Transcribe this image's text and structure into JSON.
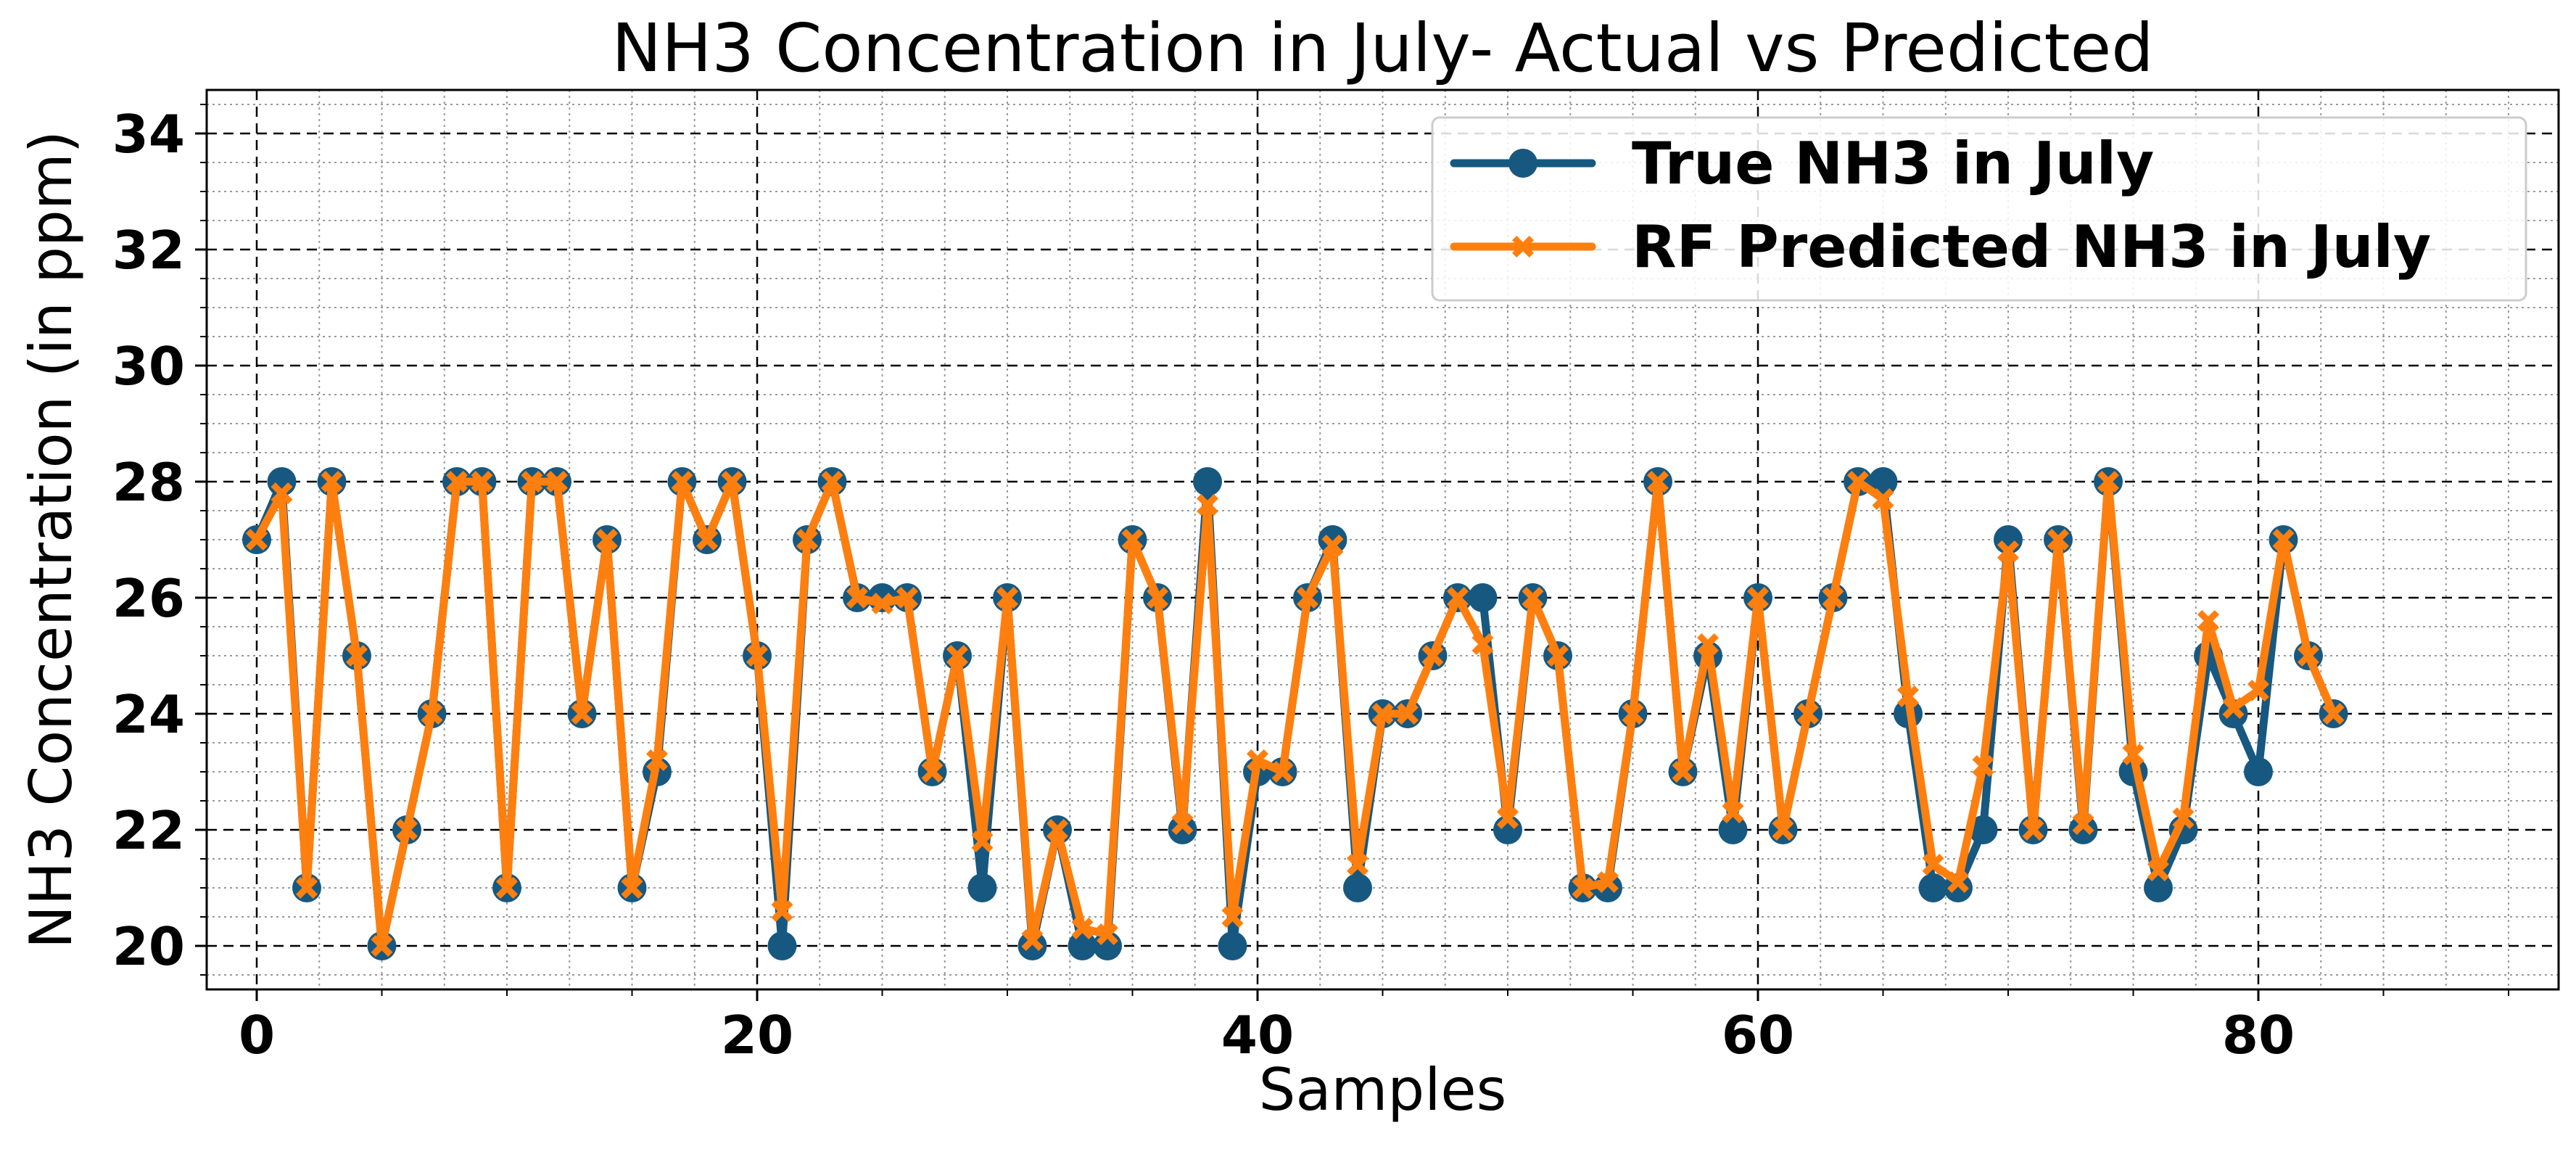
{
  "chart_data": {
    "type": "line",
    "title": "NH3 Concentration in July- Actual vs Predicted",
    "xlabel": "Samples",
    "ylabel": "NH3 Concentration (in ppm)",
    "xlim": [
      -2,
      92
    ],
    "ylim": [
      19.25,
      34.75
    ],
    "xticks": [
      0,
      20,
      40,
      60,
      80
    ],
    "yticks": [
      20,
      22,
      24,
      26,
      28,
      30,
      32,
      34
    ],
    "xtick_labels": [
      "0",
      "20",
      "40",
      "60",
      "80"
    ],
    "ytick_labels": [
      "20",
      "22",
      "24",
      "26",
      "28",
      "30",
      "32",
      "34"
    ],
    "grid": true,
    "legend_position": "top-right",
    "series": [
      {
        "name": "True NH3 in July",
        "color": "#175880",
        "marker": "circle",
        "values": [
          27,
          28,
          21,
          28,
          25,
          20,
          22,
          24,
          28,
          28,
          21,
          28,
          28,
          24,
          27,
          21,
          23,
          28,
          27,
          28,
          25,
          20,
          27,
          28,
          26,
          26,
          26,
          23,
          25,
          21,
          26,
          20,
          22,
          20,
          20,
          27,
          26,
          22,
          28,
          20,
          23,
          23,
          26,
          27,
          21,
          24,
          24,
          25,
          26,
          26,
          22,
          26,
          25,
          21,
          21,
          24,
          28,
          23,
          25,
          22,
          26,
          22,
          24,
          26,
          28,
          28,
          24,
          21,
          21,
          22,
          27,
          22,
          27,
          22,
          28,
          23,
          21,
          22,
          25,
          24,
          23,
          27,
          25,
          24
        ]
      },
      {
        "name": "RF Predicted NH3 in July",
        "color": "#ff7f0e",
        "marker": "x",
        "values": [
          27,
          27.8,
          21,
          28,
          25,
          20,
          22,
          24,
          28,
          28,
          21,
          28,
          28,
          24,
          27,
          21,
          23.2,
          28,
          27,
          28,
          25,
          20.6,
          27,
          28,
          26,
          25.9,
          26,
          23,
          25,
          21.8,
          26,
          20.1,
          22,
          20.3,
          20.2,
          27,
          26,
          22.1,
          27.6,
          20.5,
          23.2,
          23,
          26,
          26.9,
          21.4,
          24,
          24,
          25,
          26,
          25.2,
          22.2,
          26,
          25,
          21,
          21.1,
          24,
          28,
          23,
          25.2,
          22.3,
          26,
          22,
          24,
          26,
          28,
          27.7,
          24.3,
          21.4,
          21.1,
          23.1,
          26.8,
          22,
          27,
          22.1,
          28,
          23.3,
          21.3,
          22.2,
          25.6,
          24.1,
          24.4,
          27,
          25,
          24
        ]
      }
    ]
  }
}
